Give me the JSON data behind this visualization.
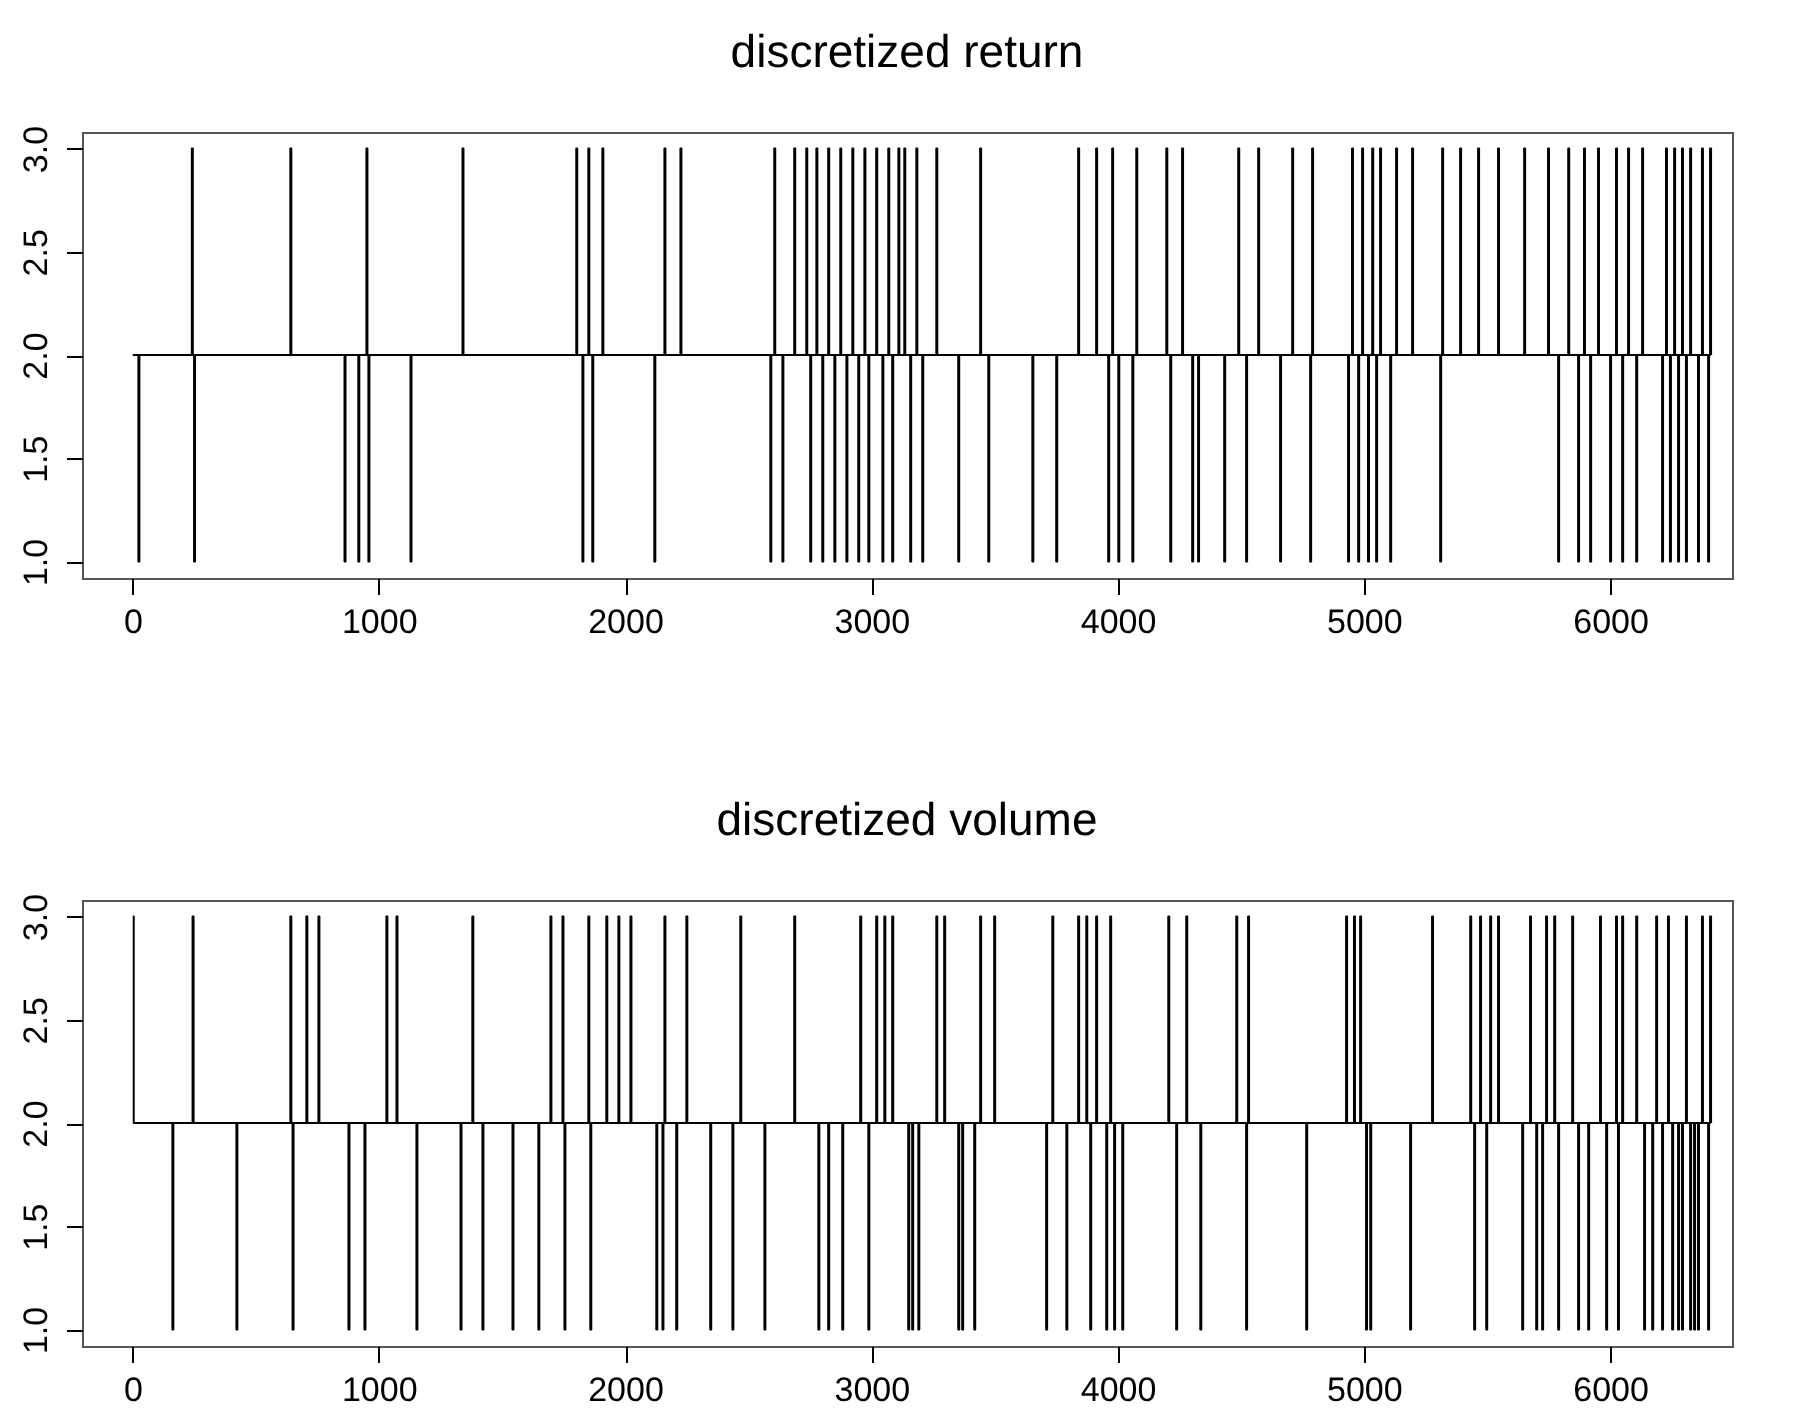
{
  "chart_data": [
    {
      "type": "step",
      "title": "discretized return",
      "xlim": [
        -205,
        6495
      ],
      "xticks": [
        0,
        1000,
        2000,
        3000,
        4000,
        5000,
        6000
      ],
      "ylim": [
        0.92,
        3.08
      ],
      "yticks": [
        {
          "value": 1,
          "label": "1.0"
        },
        {
          "value": 1.5,
          "label": "1.5"
        },
        {
          "value": 2,
          "label": "2.0"
        },
        {
          "value": 2.5,
          "label": "2.5"
        },
        {
          "value": 3,
          "label": "3.0"
        }
      ],
      "x": [
        1,
        24,
        28,
        241,
        245,
        250,
        254,
        641,
        645,
        861,
        865,
        917,
        921,
        950,
        954,
        958,
        962,
        1129,
        1133,
        1340,
        1344,
        1802,
        1806,
        1827,
        1831,
        1851,
        1855,
        1867,
        1871,
        1908,
        1912,
        2119,
        2123,
        2160,
        2164,
        2225,
        2229,
        2590,
        2594,
        2606,
        2610,
        2639,
        2643,
        2687,
        2691,
        2736,
        2740,
        2752,
        2756,
        2777,
        2781,
        2801,
        2805,
        2825,
        2829,
        2850,
        2854,
        2874,
        2878,
        2899,
        2903,
        2923,
        2927,
        2947,
        2951,
        2972,
        2976,
        2988,
        2992,
        3020,
        3024,
        3045,
        3049,
        3069,
        3073,
        3085,
        3089,
        3110,
        3114,
        3134,
        3138,
        3158,
        3162,
        3183,
        3187,
        3207,
        3211,
        3264,
        3268,
        3353,
        3357,
        3442,
        3446,
        3475,
        3479,
        3654,
        3658,
        3751,
        3755,
        3840,
        3844,
        3913,
        3917,
        3962,
        3966,
        3978,
        3982,
        4003,
        4007,
        4060,
        4064,
        4076,
        4080,
        4198,
        4202,
        4214,
        4218,
        4262,
        4266,
        4303,
        4307,
        4327,
        4331,
        4433,
        4437,
        4490,
        4494,
        4522,
        4526,
        4571,
        4575,
        4660,
        4664,
        4709,
        4713,
        4782,
        4786,
        4790,
        4794,
        4936,
        4940,
        4952,
        4956,
        4977,
        4981,
        4993,
        4997,
        5017,
        5021,
        5034,
        5038,
        5050,
        5054,
        5066,
        5070,
        5107,
        5111,
        5131,
        5135,
        5196,
        5200,
        5310,
        5314,
        5318,
        5322,
        5391,
        5395,
        5464,
        5468,
        5545,
        5549,
        5651,
        5655,
        5748,
        5752,
        5789,
        5793,
        5830,
        5834,
        5870,
        5874,
        5894,
        5898,
        5919,
        5923,
        5951,
        5955,
        6000,
        6004,
        6024,
        6028,
        6049,
        6053,
        6073,
        6077,
        6106,
        6110,
        6130,
        6134,
        6211,
        6215,
        6227,
        6231,
        6243,
        6247,
        6260,
        6264,
        6276,
        6280,
        6292,
        6296,
        6308,
        6312,
        6325,
        6329,
        6357,
        6361,
        6373,
        6377,
        6398,
        6402,
        6406,
        6410
      ],
      "series": [
        {
          "color": "#000000",
          "values": [
            2,
            1,
            2,
            3,
            2,
            1,
            2,
            3,
            2,
            1,
            2,
            1,
            2,
            3,
            2,
            1,
            2,
            1,
            2,
            3,
            2,
            3,
            2,
            1,
            2,
            3,
            2,
            1,
            2,
            3,
            2,
            1,
            2,
            3,
            2,
            3,
            2,
            1,
            2,
            3,
            2,
            1,
            2,
            3,
            2,
            3,
            2,
            1,
            2,
            3,
            2,
            1,
            2,
            3,
            2,
            1,
            2,
            3,
            2,
            1,
            2,
            3,
            2,
            1,
            2,
            3,
            2,
            1,
            2,
            3,
            2,
            1,
            2,
            3,
            2,
            1,
            2,
            3,
            2,
            3,
            2,
            1,
            2,
            3,
            2,
            1,
            2,
            3,
            2,
            1,
            2,
            3,
            2,
            1,
            2,
            1,
            2,
            1,
            2,
            3,
            2,
            3,
            2,
            1,
            2,
            3,
            2,
            1,
            2,
            1,
            2,
            3,
            2,
            3,
            2,
            1,
            2,
            3,
            2,
            1,
            2,
            1,
            2,
            1,
            2,
            3,
            2,
            1,
            2,
            3,
            2,
            1,
            2,
            3,
            2,
            1,
            2,
            3,
            2,
            1,
            2,
            3,
            2,
            1,
            2,
            3,
            2,
            1,
            2,
            3,
            2,
            1,
            2,
            3,
            2,
            1,
            2,
            3,
            2,
            3,
            2,
            1,
            2,
            3,
            2,
            3,
            2,
            3,
            2,
            3,
            2,
            3,
            2,
            3,
            2,
            1,
            2,
            3,
            2,
            1,
            2,
            3,
            2,
            1,
            2,
            3,
            2,
            1,
            2,
            3,
            2,
            1,
            2,
            3,
            2,
            1,
            2,
            3,
            2,
            1,
            2,
            3,
            2,
            1,
            2,
            3,
            2,
            1,
            2,
            3,
            2,
            1,
            2,
            3,
            2,
            1,
            2,
            3,
            2,
            1,
            2,
            3,
            2
          ]
        }
      ]
    },
    {
      "type": "step",
      "title": "discretized volume",
      "xlim": [
        -205,
        6495
      ],
      "xticks": [
        0,
        1000,
        2000,
        3000,
        4000,
        5000,
        6000
      ],
      "ylim": [
        0.92,
        3.08
      ],
      "yticks": [
        {
          "value": 1,
          "label": "1.0"
        },
        {
          "value": 1.5,
          "label": "1.5"
        },
        {
          "value": 2,
          "label": "2.0"
        },
        {
          "value": 2.5,
          "label": "2.5"
        },
        {
          "value": 3,
          "label": "3.0"
        }
      ],
      "x": [
        1,
        5,
        162,
        166,
        244,
        248,
        422,
        426,
        641,
        645,
        650,
        654,
        706,
        710,
        755,
        759,
        877,
        881,
        942,
        946,
        1031,
        1035,
        1072,
        1076,
        1153,
        1157,
        1332,
        1336,
        1380,
        1384,
        1421,
        1425,
        1543,
        1547,
        1648,
        1652,
        1697,
        1701,
        1746,
        1750,
        1754,
        1758,
        1851,
        1855,
        1859,
        1863,
        1924,
        1928,
        1973,
        1977,
        2022,
        2026,
        2127,
        2131,
        2152,
        2156,
        2160,
        2164,
        2208,
        2212,
        2249,
        2253,
        2346,
        2350,
        2436,
        2440,
        2468,
        2472,
        2566,
        2570,
        2687,
        2691,
        2785,
        2789,
        2825,
        2829,
        2882,
        2886,
        2955,
        2959,
        2988,
        2992,
        3020,
        3024,
        3053,
        3057,
        3085,
        3089,
        3150,
        3154,
        3166,
        3170,
        3191,
        3195,
        3264,
        3268,
        3296,
        3300,
        3353,
        3357,
        3369,
        3373,
        3418,
        3422,
        3442,
        3446,
        3499,
        3503,
        3710,
        3714,
        3735,
        3739,
        3792,
        3796,
        3840,
        3844,
        3873,
        3877,
        3889,
        3893,
        3913,
        3917,
        3954,
        3958,
        3970,
        3974,
        3986,
        3990,
        4019,
        4023,
        4206,
        4210,
        4238,
        4242,
        4279,
        4283,
        4336,
        4340,
        4482,
        4486,
        4522,
        4526,
        4530,
        4534,
        4766,
        4770,
        4928,
        4932,
        4960,
        4964,
        4985,
        4989,
        5009,
        5013,
        5026,
        5030,
        5188,
        5192,
        5277,
        5281,
        5432,
        5436,
        5448,
        5452,
        5472,
        5476,
        5497,
        5501,
        5513,
        5517,
        5545,
        5549,
        5643,
        5647,
        5675,
        5679,
        5700,
        5704,
        5724,
        5728,
        5740,
        5744,
        5773,
        5777,
        5789,
        5793,
        5846,
        5850,
        5870,
        5874,
        5911,
        5915,
        5959,
        5963,
        5984,
        5988,
        6024,
        6028,
        6032,
        6036,
        6049,
        6053,
        6106,
        6110,
        6138,
        6142,
        6171,
        6175,
        6187,
        6191,
        6211,
        6215,
        6235,
        6239,
        6252,
        6256,
        6276,
        6280,
        6292,
        6296,
        6308,
        6312,
        6325,
        6329,
        6341,
        6345,
        6357,
        6361,
        6373,
        6377,
        6398,
        6402,
        6406,
        6410
      ],
      "series": [
        {
          "color": "#000000",
          "values": [
            3,
            2,
            1,
            2,
            3,
            2,
            1,
            2,
            3,
            2,
            1,
            2,
            3,
            2,
            3,
            2,
            1,
            2,
            1,
            2,
            3,
            2,
            3,
            2,
            1,
            2,
            1,
            2,
            3,
            2,
            1,
            2,
            1,
            2,
            1,
            2,
            3,
            2,
            3,
            2,
            1,
            2,
            3,
            2,
            1,
            2,
            3,
            2,
            3,
            2,
            3,
            2,
            1,
            2,
            1,
            2,
            3,
            2,
            1,
            2,
            3,
            2,
            1,
            2,
            1,
            2,
            3,
            2,
            1,
            2,
            3,
            2,
            1,
            2,
            1,
            2,
            1,
            2,
            3,
            2,
            1,
            2,
            3,
            2,
            3,
            2,
            3,
            2,
            1,
            2,
            1,
            2,
            1,
            2,
            3,
            2,
            3,
            2,
            1,
            2,
            1,
            2,
            1,
            2,
            3,
            2,
            3,
            2,
            1,
            2,
            3,
            2,
            1,
            2,
            3,
            2,
            3,
            2,
            1,
            2,
            3,
            2,
            1,
            2,
            3,
            2,
            1,
            2,
            1,
            2,
            3,
            2,
            1,
            2,
            3,
            2,
            1,
            2,
            3,
            2,
            1,
            2,
            3,
            2,
            1,
            2,
            3,
            2,
            3,
            2,
            3,
            2,
            1,
            2,
            1,
            2,
            1,
            2,
            3,
            2,
            3,
            2,
            1,
            2,
            3,
            2,
            1,
            2,
            3,
            2,
            3,
            2,
            1,
            2,
            3,
            2,
            1,
            2,
            1,
            2,
            3,
            2,
            3,
            2,
            1,
            2,
            3,
            2,
            1,
            2,
            1,
            2,
            3,
            2,
            1,
            2,
            3,
            2,
            1,
            2,
            3,
            2,
            3,
            2,
            1,
            2,
            1,
            2,
            3,
            2,
            1,
            2,
            3,
            2,
            1,
            2,
            1,
            2,
            1,
            2,
            3,
            2,
            1,
            2,
            1,
            2,
            1,
            2,
            3,
            2,
            1,
            2,
            3,
            2
          ]
        }
      ]
    }
  ]
}
